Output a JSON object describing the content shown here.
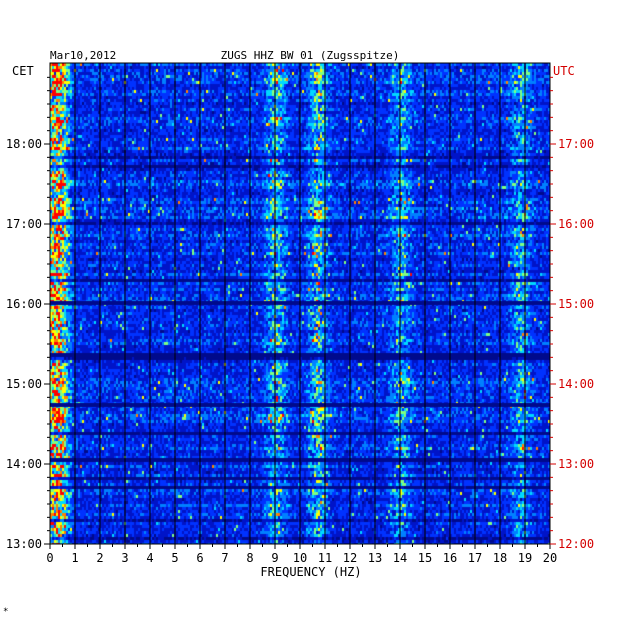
{
  "chart_data": {
    "type": "heatmap",
    "date": "Mar10,2012",
    "title": "ZUGS HHZ BW 01 (Zugsspitze)",
    "xlabel": "FREQUENCY (HZ)",
    "left_axis_label": "CET",
    "right_axis_label": "UTC",
    "x_ticks": [
      "0",
      "1",
      "2",
      "3",
      "4",
      "5",
      "6",
      "7",
      "8",
      "9",
      "10",
      "11",
      "12",
      "13",
      "14",
      "15",
      "16",
      "17",
      "18",
      "19",
      "20"
    ],
    "xlim": [
      0,
      20
    ],
    "cet_ticks": [
      "18:00",
      "17:00",
      "16:00",
      "15:00",
      "14:00",
      "13:00"
    ],
    "utc_ticks": [
      "17:00",
      "16:00",
      "15:00",
      "14:00",
      "13:00",
      "12:00"
    ],
    "ylim_hours_cet": [
      13,
      18.85
    ],
    "colormap": [
      "#000a8c",
      "#0014c8",
      "#0032ff",
      "#0080ff",
      "#00d8ff",
      "#80ff80",
      "#ffff00",
      "#ff8000",
      "#ff0000"
    ],
    "strong_bands_hz": [
      {
        "center": 0.3,
        "level": 0.85
      },
      {
        "center": 9.0,
        "level": 0.55
      },
      {
        "center": 10.7,
        "level": 0.6
      },
      {
        "center": 14.0,
        "level": 0.45
      },
      {
        "center": 18.8,
        "level": 0.45
      }
    ],
    "footnote": "*"
  }
}
